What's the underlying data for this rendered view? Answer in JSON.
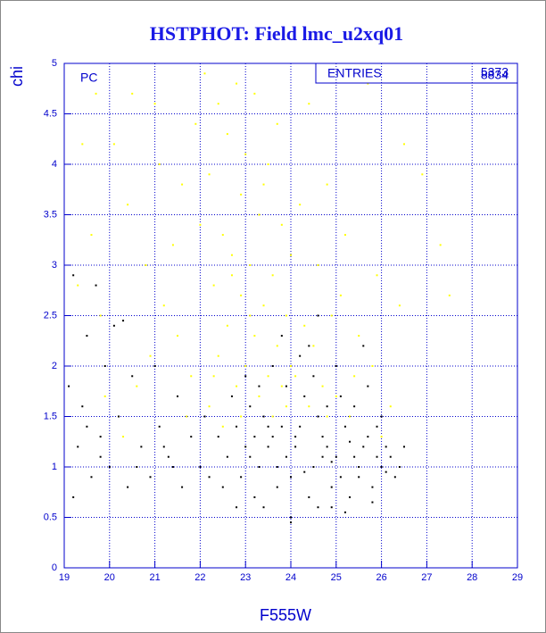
{
  "chart_data": {
    "type": "scatter",
    "title": "HSTPHOT: Field lmc_u2xq01",
    "x_label": "F555W",
    "y_label": "chi",
    "annotation": "PC",
    "stats": {
      "label": "ENTRIES",
      "values": [
        5373,
        8834
      ]
    },
    "xlim": [
      19,
      29
    ],
    "ylim": [
      0,
      5
    ],
    "xticks": [
      19,
      20,
      21,
      22,
      23,
      24,
      25,
      26,
      27,
      28,
      29
    ],
    "yticks": [
      0,
      0.5,
      1,
      1.5,
      2,
      2.5,
      3,
      3.5,
      4,
      4.5,
      5
    ],
    "grid": true,
    "series": [
      {
        "color": "#ffff00",
        "x": [
          22.1,
          22.4,
          22.8,
          23.2,
          22.6,
          23.0,
          22.2,
          23.5,
          22.9,
          23.3,
          22.5,
          23.8,
          22.7,
          23.1,
          23.6,
          24.0,
          22.3,
          22.9,
          23.4,
          23.9,
          24.3,
          22.6,
          23.2,
          23.7,
          24.5,
          22.4,
          23.0,
          23.5,
          24.1,
          24.7,
          22.8,
          23.3,
          23.9,
          24.4,
          25.0,
          22.2,
          23.6,
          24.8,
          25.3,
          22.5,
          21.8,
          21.5,
          21.2,
          20.8,
          20.4,
          20.1,
          19.6,
          19.4,
          19.8,
          20.6,
          21.0,
          21.6,
          21.9,
          21.4,
          24.6,
          25.1,
          25.5,
          25.8,
          26.2,
          24.2,
          24.8,
          25.2,
          26.5,
          26.9,
          27.3,
          26.4,
          25.9,
          20.3,
          19.9,
          20.9,
          22.0,
          23.7,
          24.4,
          25.7,
          19.3,
          21.7,
          22.9,
          24.0,
          23.1,
          22.7,
          23.4,
          24.9,
          25.4,
          26.0,
          22.3,
          23.8,
          21.1,
          19.7,
          20.5,
          27.5
        ],
        "y": [
          4.9,
          4.6,
          4.8,
          4.7,
          4.3,
          4.1,
          3.9,
          4.0,
          3.7,
          3.5,
          3.3,
          3.4,
          3.1,
          3.0,
          2.9,
          3.1,
          2.8,
          2.7,
          2.6,
          2.5,
          2.4,
          2.4,
          2.3,
          2.2,
          2.2,
          2.1,
          2.0,
          1.9,
          1.9,
          1.8,
          1.8,
          1.7,
          1.6,
          1.6,
          1.7,
          1.6,
          1.5,
          1.5,
          1.5,
          1.4,
          1.9,
          2.3,
          2.6,
          3.0,
          3.6,
          4.2,
          3.3,
          4.2,
          2.5,
          1.8,
          4.6,
          3.8,
          4.4,
          3.2,
          3.0,
          2.7,
          2.3,
          2.0,
          1.6,
          3.6,
          3.8,
          3.3,
          4.2,
          3.9,
          3.2,
          2.6,
          2.9,
          1.3,
          1.7,
          2.1,
          3.4,
          4.4,
          4.6,
          4.8,
          2.8,
          1.5,
          1.5,
          2.0,
          2.5,
          2.9,
          3.8,
          2.5,
          1.9,
          1.3,
          1.9,
          1.8,
          4.0,
          4.7,
          4.7,
          2.7
        ]
      },
      {
        "color": "#000000",
        "x": [
          23.0,
          23.3,
          23.6,
          23.9,
          24.2,
          24.5,
          24.8,
          25.1,
          25.4,
          25.7,
          26.0,
          26.2,
          22.8,
          23.1,
          23.4,
          23.7,
          24.0,
          24.3,
          24.6,
          24.9,
          25.2,
          25.5,
          25.8,
          26.1,
          22.6,
          22.9,
          23.2,
          23.5,
          23.8,
          24.1,
          24.4,
          24.7,
          25.0,
          25.3,
          25.6,
          25.9,
          26.3,
          22.7,
          23.0,
          23.3,
          23.6,
          23.9,
          24.2,
          24.5,
          24.8,
          25.1,
          25.4,
          25.7,
          26.0,
          22.5,
          22.8,
          23.4,
          24.0,
          24.6,
          25.2,
          25.8,
          26.4,
          22.4,
          23.1,
          23.7,
          24.3,
          24.9,
          25.5,
          26.1,
          23.5,
          24.1,
          24.7,
          25.3,
          25.9,
          23.2,
          19.1,
          19.3,
          19.5,
          19.6,
          19.8,
          20.0,
          20.2,
          20.4,
          20.5,
          20.7,
          20.9,
          21.1,
          21.3,
          21.5,
          21.6,
          21.8,
          22.0,
          22.1,
          19.2,
          19.7,
          20.1,
          20.3,
          19.4,
          19.9,
          21.0,
          21.4,
          22.2,
          19.2,
          19.8,
          20.6,
          21.2,
          19.5,
          23.8,
          24.4,
          25.0,
          25.6,
          24.6,
          24.0,
          24.9,
          26.5
        ],
        "y": [
          1.2,
          1.0,
          1.3,
          1.1,
          1.4,
          1.0,
          1.2,
          0.9,
          1.1,
          1.3,
          1.0,
          1.1,
          1.4,
          1.6,
          1.5,
          0.8,
          0.9,
          1.7,
          1.5,
          0.8,
          1.4,
          0.9,
          0.8,
          1.2,
          1.1,
          0.9,
          0.7,
          1.2,
          1.4,
          1.2,
          0.7,
          1.3,
          1.1,
          0.7,
          1.2,
          1.4,
          0.9,
          1.7,
          1.9,
          1.8,
          2.0,
          1.8,
          2.1,
          1.9,
          1.6,
          1.7,
          1.6,
          1.8,
          1.5,
          0.8,
          0.6,
          0.6,
          0.5,
          0.6,
          0.55,
          0.65,
          1.0,
          1.3,
          1.1,
          1.0,
          0.95,
          1.05,
          1.0,
          0.95,
          1.4,
          1.3,
          1.1,
          1.25,
          1.1,
          1.3,
          1.8,
          1.2,
          2.3,
          0.9,
          1.3,
          1.0,
          1.5,
          0.8,
          1.9,
          1.2,
          0.9,
          1.4,
          1.1,
          1.7,
          0.8,
          1.3,
          1.0,
          1.5,
          2.9,
          2.8,
          2.4,
          2.45,
          1.6,
          2.0,
          2.0,
          1.0,
          0.9,
          0.7,
          1.1,
          1.0,
          1.2,
          1.4,
          2.3,
          2.2,
          2.0,
          2.2,
          2.5,
          0.45,
          0.6,
          1.2
        ]
      }
    ]
  }
}
